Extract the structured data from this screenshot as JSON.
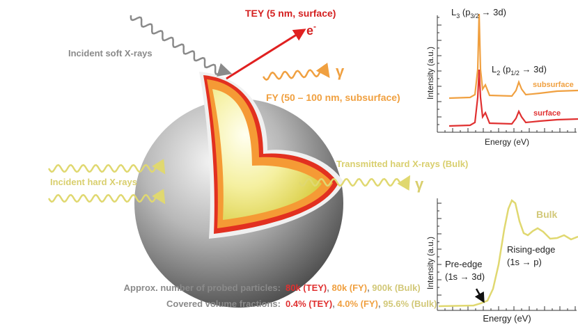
{
  "labels": {
    "tey": "TEY (5 nm, surface)",
    "electron": "e",
    "electron_charge": "-",
    "incident_soft": "Incident soft X-rays",
    "gamma": "γ",
    "fy": "FY (50 – 100 nm, subsurface)",
    "transmitted": "Transmitted hard X-rays (Bulk)",
    "incident_hard": "Incident hard X-rays"
  },
  "summary": {
    "separator": ", ",
    "rows": [
      {
        "label": "Approx. number of probed particles:",
        "tey": "80k (TEY)",
        "fy": "80k (FY)",
        "bulk": "900k (Bulk)"
      },
      {
        "label": "Covered volume fractions:",
        "tey": "0.4% (TEY)",
        "fy": "4.0% (FY)",
        "bulk": "95.6% (Bulk)"
      }
    ]
  },
  "surface_spectrum": {
    "l3": [
      "L",
      "3",
      " (p",
      "3/2",
      " → 3d)"
    ],
    "l2": [
      "L",
      "2",
      " (p",
      "1/2",
      " → 3d)"
    ],
    "subsurface": "subsurface",
    "surface": "surface",
    "y_label": "Intensity (a.u.)",
    "x_label": "Energy (eV)"
  },
  "bulk_spectrum": {
    "bulk": "Bulk",
    "rising_edge": [
      "Rising-edge",
      "(1s → p)"
    ],
    "pre_edge": [
      "Pre-edge",
      "(1s → 3d)"
    ],
    "y_label": "Intensity (a.u.)",
    "x_label": "Energy (eV)"
  }
}
